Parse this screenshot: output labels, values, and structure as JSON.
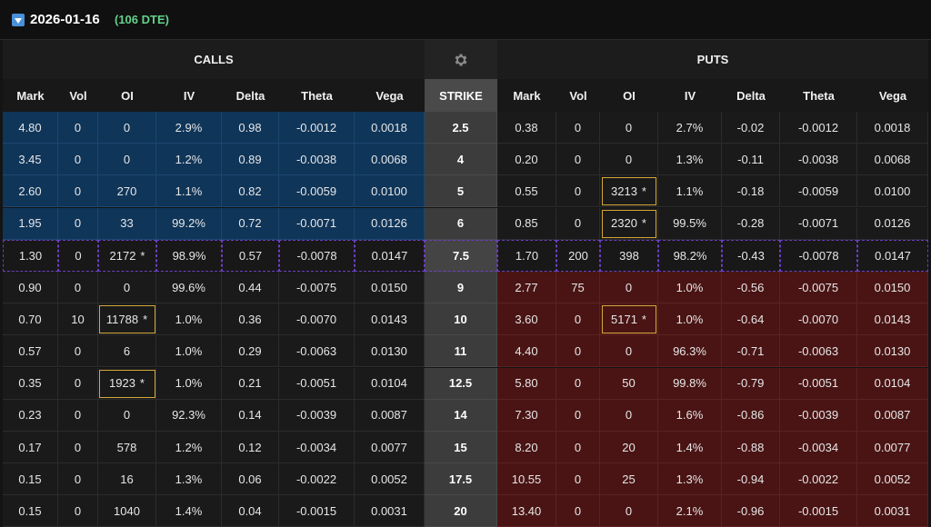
{
  "expiration": {
    "date": "2026-01-16",
    "dte": "(106 DTE)"
  },
  "headers": {
    "calls": "CALLS",
    "puts": "PUTS"
  },
  "columns": {
    "calls": [
      "Mark",
      "Vol",
      "OI",
      "IV",
      "Delta",
      "Theta",
      "Vega"
    ],
    "strike": "STRIKE",
    "puts": [
      "Mark",
      "Vol",
      "OI",
      "IV",
      "Delta",
      "Theta",
      "Vega"
    ]
  },
  "rows": [
    {
      "strike": "2.5",
      "call": [
        "4.80",
        "0",
        "0",
        "2.9%",
        "0.98",
        "-0.0012",
        "0.0018"
      ],
      "put": [
        "0.38",
        "0",
        "0",
        "2.7%",
        "-0.02",
        "-0.0012",
        "0.0018"
      ],
      "call_oi_flag": false,
      "put_oi_flag": false
    },
    {
      "strike": "4",
      "call": [
        "3.45",
        "0",
        "0",
        "1.2%",
        "0.89",
        "-0.0038",
        "0.0068"
      ],
      "put": [
        "0.20",
        "0",
        "0",
        "1.3%",
        "-0.11",
        "-0.0038",
        "0.0068"
      ],
      "call_oi_flag": false,
      "put_oi_flag": false
    },
    {
      "strike": "5",
      "call": [
        "2.60",
        "0",
        "270",
        "1.1%",
        "0.82",
        "-0.0059",
        "0.0100"
      ],
      "put": [
        "0.55",
        "0",
        "3213",
        "1.1%",
        "-0.18",
        "-0.0059",
        "0.0100"
      ],
      "call_oi_flag": false,
      "put_oi_flag": true
    },
    {
      "strike": "6",
      "call": [
        "1.95",
        "0",
        "33",
        "99.2%",
        "0.72",
        "-0.0071",
        "0.0126"
      ],
      "put": [
        "0.85",
        "0",
        "2320",
        "99.5%",
        "-0.28",
        "-0.0071",
        "0.0126"
      ],
      "call_oi_flag": false,
      "put_oi_flag": true
    },
    {
      "strike": "7.5",
      "call": [
        "1.30",
        "0",
        "2172",
        "98.9%",
        "0.57",
        "-0.0078",
        "0.0147"
      ],
      "put": [
        "1.70",
        "200",
        "398",
        "98.2%",
        "-0.43",
        "-0.0078",
        "0.0147"
      ],
      "call_oi_flag": true,
      "put_oi_flag": false
    },
    {
      "strike": "9",
      "call": [
        "0.90",
        "0",
        "0",
        "99.6%",
        "0.44",
        "-0.0075",
        "0.0150"
      ],
      "put": [
        "2.77",
        "75",
        "0",
        "1.0%",
        "-0.56",
        "-0.0075",
        "0.0150"
      ],
      "call_oi_flag": false,
      "put_oi_flag": false
    },
    {
      "strike": "10",
      "call": [
        "0.70",
        "10",
        "11788",
        "1.0%",
        "0.36",
        "-0.0070",
        "0.0143"
      ],
      "put": [
        "3.60",
        "0",
        "5171",
        "1.0%",
        "-0.64",
        "-0.0070",
        "0.0143"
      ],
      "call_oi_flag": true,
      "put_oi_flag": true
    },
    {
      "strike": "11",
      "call": [
        "0.57",
        "0",
        "6",
        "1.0%",
        "0.29",
        "-0.0063",
        "0.0130"
      ],
      "put": [
        "4.40",
        "0",
        "0",
        "96.3%",
        "-0.71",
        "-0.0063",
        "0.0130"
      ],
      "call_oi_flag": false,
      "put_oi_flag": false
    },
    {
      "strike": "12.5",
      "call": [
        "0.35",
        "0",
        "1923",
        "1.0%",
        "0.21",
        "-0.0051",
        "0.0104"
      ],
      "put": [
        "5.80",
        "0",
        "50",
        "99.8%",
        "-0.79",
        "-0.0051",
        "0.0104"
      ],
      "call_oi_flag": true,
      "put_oi_flag": false
    },
    {
      "strike": "14",
      "call": [
        "0.23",
        "0",
        "0",
        "92.3%",
        "0.14",
        "-0.0039",
        "0.0087"
      ],
      "put": [
        "7.30",
        "0",
        "0",
        "1.6%",
        "-0.86",
        "-0.0039",
        "0.0087"
      ],
      "call_oi_flag": false,
      "put_oi_flag": false
    },
    {
      "strike": "15",
      "call": [
        "0.17",
        "0",
        "578",
        "1.2%",
        "0.12",
        "-0.0034",
        "0.0077"
      ],
      "put": [
        "8.20",
        "0",
        "20",
        "1.4%",
        "-0.88",
        "-0.0034",
        "0.0077"
      ],
      "call_oi_flag": false,
      "put_oi_flag": false
    },
    {
      "strike": "17.5",
      "call": [
        "0.15",
        "0",
        "16",
        "1.3%",
        "0.06",
        "-0.0022",
        "0.0052"
      ],
      "put": [
        "10.55",
        "0",
        "25",
        "1.3%",
        "-0.94",
        "-0.0022",
        "0.0052"
      ],
      "call_oi_flag": false,
      "put_oi_flag": false
    },
    {
      "strike": "20",
      "call": [
        "0.15",
        "0",
        "1040",
        "1.4%",
        "0.04",
        "-0.0015",
        "0.0031"
      ],
      "put": [
        "13.40",
        "0",
        "0",
        "2.1%",
        "-0.96",
        "-0.0015",
        "0.0031"
      ],
      "call_oi_flag": false,
      "put_oi_flag": false
    }
  ],
  "flag_symbol": "*",
  "icons": {
    "expand": "expand-triangle-icon",
    "settings": "gear-icon"
  },
  "colors": {
    "call_itm": "#0f3559",
    "put_itm": "#4a1414",
    "dte": "#64d08a",
    "oi_highlight": "#d4a63a",
    "atm_border": "#6a3fc2"
  }
}
